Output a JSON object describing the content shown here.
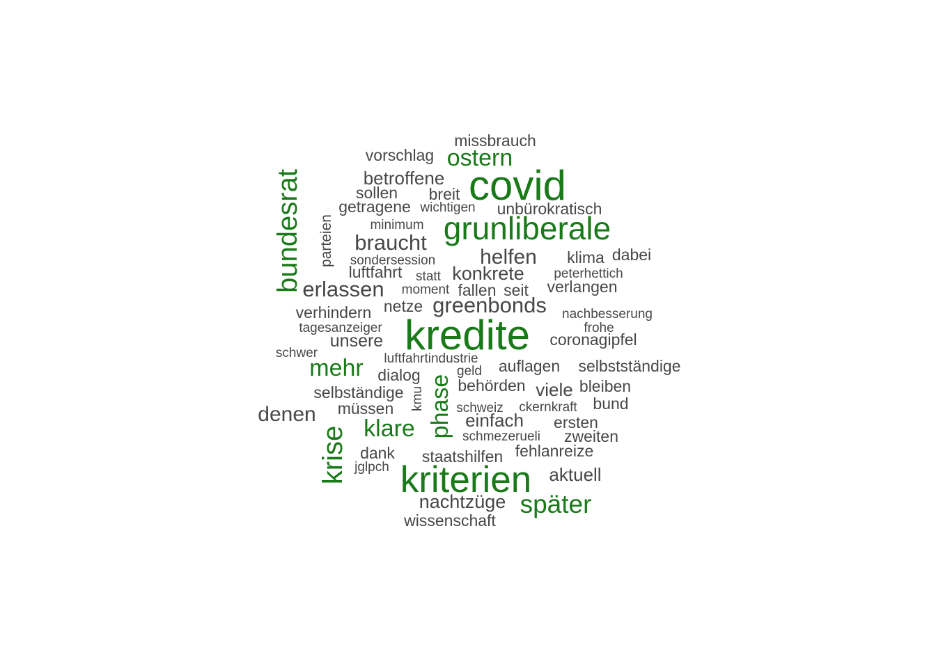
{
  "colors": {
    "highlight": "#1a7a1a",
    "normal": "#474747"
  },
  "words": [
    {
      "text": "missbrauch",
      "weight": 2,
      "highlight": false
    },
    {
      "text": "vorschlag",
      "weight": 2,
      "highlight": false
    },
    {
      "text": "ostern",
      "weight": 4,
      "highlight": true
    },
    {
      "text": "betroffene",
      "weight": 3,
      "highlight": false
    },
    {
      "text": "covid",
      "weight": 9,
      "highlight": true
    },
    {
      "text": "sollen",
      "weight": 2,
      "highlight": false
    },
    {
      "text": "breit",
      "weight": 2,
      "highlight": false
    },
    {
      "text": "bundesrat",
      "weight": 5,
      "highlight": true
    },
    {
      "text": "getragene",
      "weight": 2,
      "highlight": false
    },
    {
      "text": "wichtigen",
      "weight": 1,
      "highlight": false
    },
    {
      "text": "unbürokratisch",
      "weight": 2,
      "highlight": false
    },
    {
      "text": "parteien",
      "weight": 2,
      "highlight": false
    },
    {
      "text": "minimum",
      "weight": 1,
      "highlight": false
    },
    {
      "text": "grunliberale",
      "weight": 6,
      "highlight": true
    },
    {
      "text": "braucht",
      "weight": 3,
      "highlight": false
    },
    {
      "text": "helfen",
      "weight": 3,
      "highlight": false
    },
    {
      "text": "klima",
      "weight": 2,
      "highlight": false
    },
    {
      "text": "dabei",
      "weight": 2,
      "highlight": false
    },
    {
      "text": "sondersession",
      "weight": 1,
      "highlight": false
    },
    {
      "text": "luftfahrt",
      "weight": 2,
      "highlight": false
    },
    {
      "text": "statt",
      "weight": 1,
      "highlight": false
    },
    {
      "text": "konkrete",
      "weight": 3,
      "highlight": false
    },
    {
      "text": "peterhettich",
      "weight": 1,
      "highlight": false
    },
    {
      "text": "erlassen",
      "weight": 3,
      "highlight": false
    },
    {
      "text": "moment",
      "weight": 1,
      "highlight": false
    },
    {
      "text": "fallen",
      "weight": 2,
      "highlight": false
    },
    {
      "text": "seit",
      "weight": 2,
      "highlight": false
    },
    {
      "text": "verlangen",
      "weight": 2,
      "highlight": false
    },
    {
      "text": "verhindern",
      "weight": 2,
      "highlight": false
    },
    {
      "text": "netze",
      "weight": 2,
      "highlight": false
    },
    {
      "text": "greenbonds",
      "weight": 3,
      "highlight": false
    },
    {
      "text": "nachbesserung",
      "weight": 1,
      "highlight": false
    },
    {
      "text": "tagesanzeiger",
      "weight": 1,
      "highlight": false
    },
    {
      "text": "kredite",
      "weight": 10,
      "highlight": true
    },
    {
      "text": "frohe",
      "weight": 1,
      "highlight": false
    },
    {
      "text": "unsere",
      "weight": 2,
      "highlight": false
    },
    {
      "text": "coronagipfel",
      "weight": 2,
      "highlight": false
    },
    {
      "text": "schwer",
      "weight": 1,
      "highlight": false
    },
    {
      "text": "luftfahrtindustrie",
      "weight": 1,
      "highlight": false
    },
    {
      "text": "mehr",
      "weight": 4,
      "highlight": true
    },
    {
      "text": "geld",
      "weight": 1,
      "highlight": false
    },
    {
      "text": "auflagen",
      "weight": 2,
      "highlight": false
    },
    {
      "text": "selbstständige",
      "weight": 2,
      "highlight": false
    },
    {
      "text": "dialog",
      "weight": 2,
      "highlight": false
    },
    {
      "text": "phase",
      "weight": 4,
      "highlight": true
    },
    {
      "text": "behörden",
      "weight": 2,
      "highlight": false
    },
    {
      "text": "viele",
      "weight": 2,
      "highlight": false
    },
    {
      "text": "bleiben",
      "weight": 2,
      "highlight": false
    },
    {
      "text": "selbständige",
      "weight": 2,
      "highlight": false
    },
    {
      "text": "kmu",
      "weight": 1,
      "highlight": false
    },
    {
      "text": "schweiz",
      "weight": 1,
      "highlight": false
    },
    {
      "text": "ckernkraft",
      "weight": 1,
      "highlight": false
    },
    {
      "text": "bund",
      "weight": 2,
      "highlight": false
    },
    {
      "text": "denen",
      "weight": 3,
      "highlight": false
    },
    {
      "text": "müssen",
      "weight": 2,
      "highlight": false
    },
    {
      "text": "einfach",
      "weight": 2,
      "highlight": false
    },
    {
      "text": "ersten",
      "weight": 2,
      "highlight": false
    },
    {
      "text": "krise",
      "weight": 5,
      "highlight": true
    },
    {
      "text": "klare",
      "weight": 4,
      "highlight": true
    },
    {
      "text": "schmezerueli",
      "weight": 1,
      "highlight": false
    },
    {
      "text": "zweiten",
      "weight": 2,
      "highlight": false
    },
    {
      "text": "dank",
      "weight": 2,
      "highlight": false
    },
    {
      "text": "staatshilfen",
      "weight": 2,
      "highlight": false
    },
    {
      "text": "fehlanreize",
      "weight": 2,
      "highlight": false
    },
    {
      "text": "jglpch",
      "weight": 1,
      "highlight": false
    },
    {
      "text": "kriterien",
      "weight": 9,
      "highlight": true
    },
    {
      "text": "aktuell",
      "weight": 2,
      "highlight": false
    },
    {
      "text": "nachtzüge",
      "weight": 3,
      "highlight": false
    },
    {
      "text": "später",
      "weight": 4,
      "highlight": true
    },
    {
      "text": "wissenschaft",
      "weight": 2,
      "highlight": false
    }
  ]
}
